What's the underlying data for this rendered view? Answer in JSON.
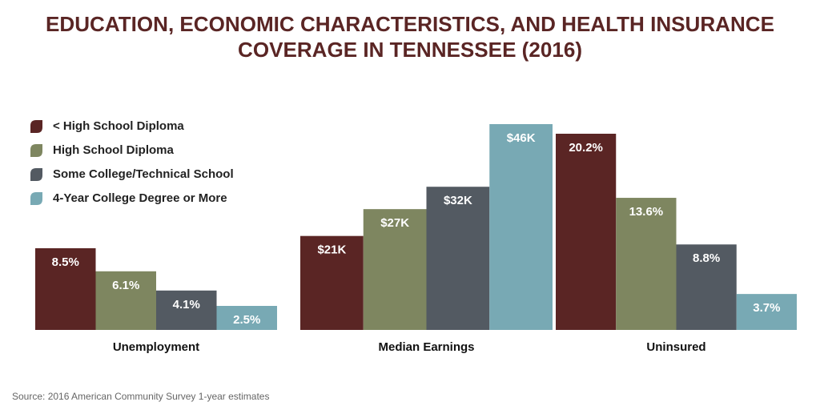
{
  "chart_data": {
    "type": "bar",
    "title": [
      "EDUCATION, ECONOMIC CHARACTERISTICS, AND HEALTH INSURANCE",
      "COVERAGE IN TENNESSEE (2016)"
    ],
    "categories": [
      "Unemployment",
      "Median Earnings",
      "Uninsured"
    ],
    "series": [
      {
        "name": "< High School Diploma",
        "color": "#5a2524",
        "values": [
          8.5,
          21000,
          20.2
        ],
        "value_labels": [
          "8.5%",
          "$21K",
          "20.2%"
        ]
      },
      {
        "name": "High School Diploma",
        "color": "#7e8660",
        "values": [
          6.1,
          27000,
          13.6
        ],
        "value_labels": [
          "6.1%",
          "$27K",
          "13.6%"
        ]
      },
      {
        "name": "Some College/Technical School",
        "color": "#535a62",
        "values": [
          4.1,
          32000,
          8.8
        ],
        "value_labels": [
          "4.1%",
          "$32K",
          "8.8%"
        ]
      },
      {
        "name": "4-Year College Degree or More",
        "color": "#78a9b4",
        "values": [
          2.5,
          46000,
          3.7
        ],
        "value_labels": [
          "2.5%",
          "$46K",
          "3.7%"
        ]
      }
    ],
    "source": "Source: 2016 American Community Survey 1-year estimates"
  }
}
